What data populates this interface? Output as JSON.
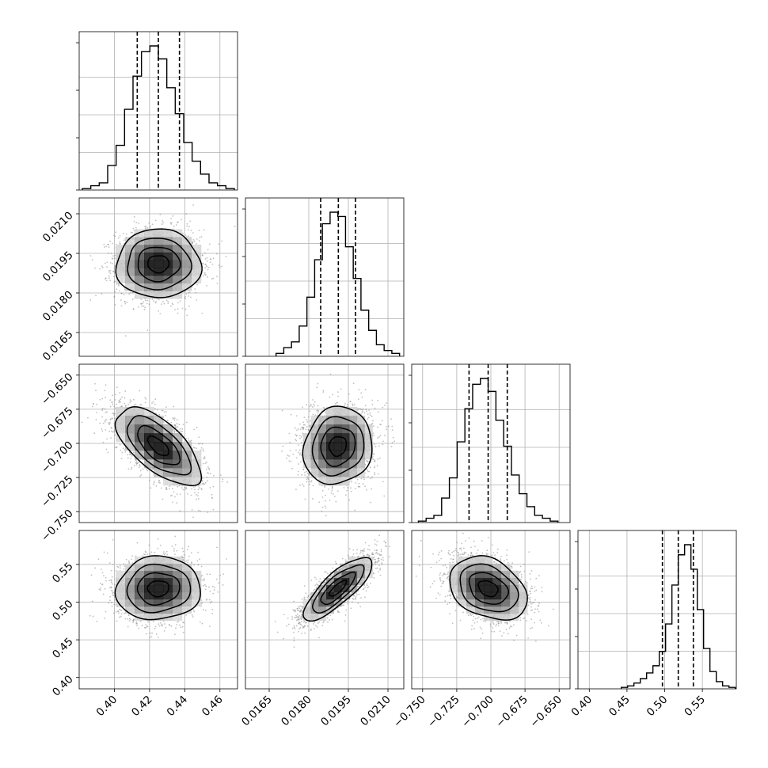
{
  "chart_data": {
    "type": "corner",
    "parameters": [
      {
        "range": [
          0.38,
          0.47
        ],
        "ticks": [
          0.4,
          0.42,
          0.44,
          0.46
        ],
        "tick_labels": [
          "0.40",
          "0.42",
          "0.44",
          "0.46"
        ],
        "quantiles": [
          0.413,
          0.425,
          0.437
        ],
        "center": 0.425,
        "sigma": 0.012
      },
      {
        "range": [
          0.0156,
          0.0216
        ],
        "ticks": [
          0.0165,
          0.018,
          0.0195,
          0.021
        ],
        "tick_labels": [
          "0.0165",
          "0.0180",
          "0.0195",
          "0.0210"
        ],
        "quantiles": [
          0.01845,
          0.01912,
          0.01977
        ],
        "center": 0.0191,
        "sigma": 0.00065
      },
      {
        "range": [
          -0.758,
          -0.642
        ],
        "ticks": [
          -0.75,
          -0.725,
          -0.7,
          -0.675,
          -0.65
        ],
        "tick_labels": [
          "−0.750",
          "−0.725",
          "−0.700",
          "−0.675",
          "−0.650"
        ],
        "quantiles": [
          -0.716,
          -0.702,
          -0.688
        ],
        "center": -0.702,
        "sigma": 0.0142
      },
      {
        "range": [
          0.385,
          0.595
        ],
        "ticks": [
          0.4,
          0.45,
          0.5,
          0.55
        ],
        "tick_labels": [
          "0.40",
          "0.45",
          "0.50",
          "0.55"
        ],
        "quantiles": [
          0.497,
          0.518,
          0.538
        ],
        "center": 0.518,
        "sigma": 0.021
      }
    ],
    "histograms": [
      {
        "param": 0,
        "counts": [
          0.01,
          0.03,
          0.05,
          0.17,
          0.31,
          0.56,
          0.79,
          0.96,
          1.0,
          0.91,
          0.71,
          0.53,
          0.33,
          0.2,
          0.11,
          0.05,
          0.03,
          0.01
        ]
      },
      {
        "param": 1,
        "counts": [
          0.02,
          0.06,
          0.1,
          0.21,
          0.41,
          0.67,
          0.92,
          1.0,
          0.97,
          0.76,
          0.54,
          0.32,
          0.18,
          0.08,
          0.04,
          0.02
        ]
      },
      {
        "param": 2,
        "counts": [
          0.01,
          0.03,
          0.05,
          0.17,
          0.31,
          0.56,
          0.79,
          0.96,
          1.0,
          0.91,
          0.71,
          0.53,
          0.33,
          0.2,
          0.11,
          0.05,
          0.03,
          0.01
        ]
      },
      {
        "param": 3,
        "counts": [
          0.01,
          0.02,
          0.04,
          0.07,
          0.11,
          0.16,
          0.26,
          0.45,
          0.72,
          0.93,
          1.0,
          0.83,
          0.55,
          0.28,
          0.12,
          0.05,
          0.02,
          0.01
        ]
      }
    ],
    "correlations": [
      {
        "x": 0,
        "y": 1,
        "rho": 0.0
      },
      {
        "x": 0,
        "y": 2,
        "rho": -0.65
      },
      {
        "x": 1,
        "y": 2,
        "rho": 0.1
      },
      {
        "x": 0,
        "y": 3,
        "rho": 0.05
      },
      {
        "x": 1,
        "y": 3,
        "rho": 0.8
      },
      {
        "x": 2,
        "y": 3,
        "rho": -0.3
      }
    ],
    "contour_levels_sigma": [
      0.5,
      1.0,
      1.5,
      2.0
    ],
    "grid": true,
    "colors": {
      "hist": "#000000",
      "contour": "#000000",
      "points": "#8c8c8c",
      "density": "#000000"
    }
  }
}
